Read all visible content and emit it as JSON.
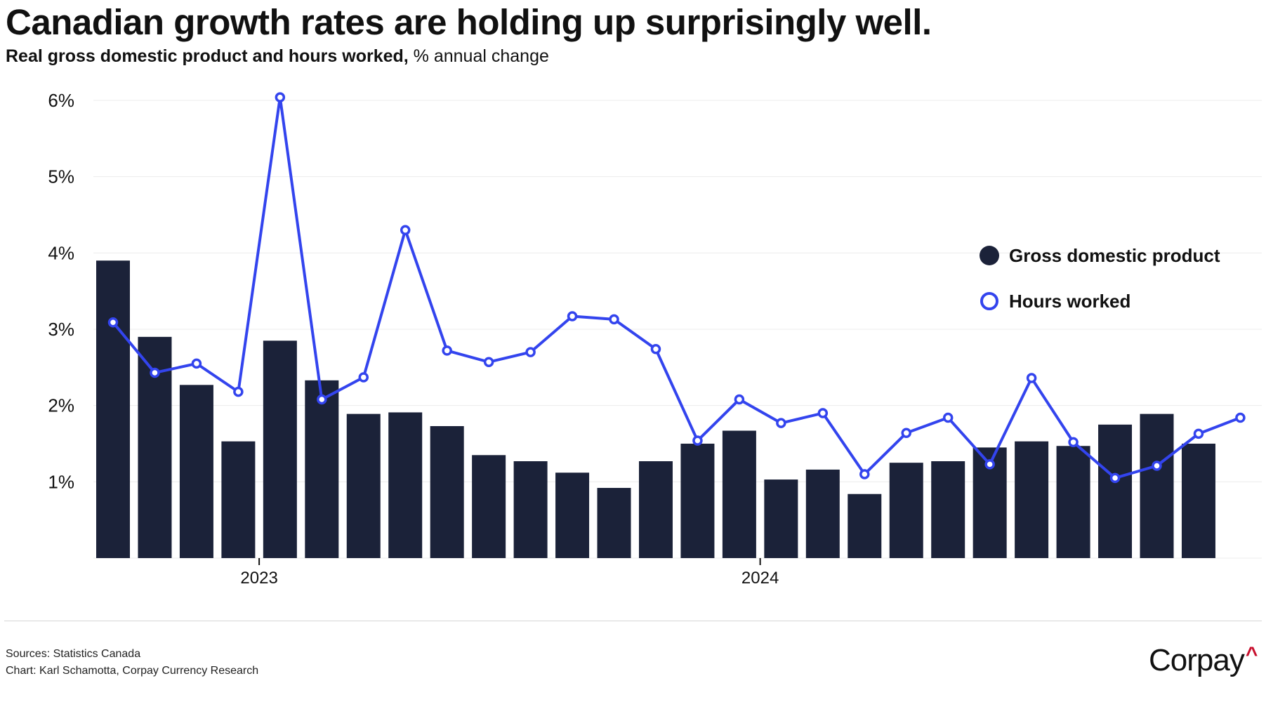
{
  "title": "Canadian growth rates are holding up surprisingly well.",
  "subtitle_bold": "Real gross domestic product and hours worked,",
  "subtitle_rest": " % annual change",
  "sources": "Sources: Statistics Canada",
  "credit": "Chart: Karl Schamotta, Corpay Currency Research",
  "logo_text": "Corpay",
  "logo_mark": "^",
  "colors": {
    "gdp": "#1b2239",
    "hours": "#3344ee",
    "grid": "#ececec",
    "logo_accent": "#c8102e"
  },
  "chart_data": {
    "type": "bar+line",
    "title": "Canadian growth rates are holding up surprisingly well.",
    "subtitle": "Real gross domestic product and hours worked, % annual change",
    "ylim": [
      0,
      6
    ],
    "yticks": [
      1,
      2,
      3,
      4,
      5,
      6
    ],
    "ytick_labels": [
      "1%",
      "2%",
      "3%",
      "4%",
      "5%",
      "6%"
    ],
    "xtick_labels": [
      {
        "label": "2023",
        "pos": 3.5
      },
      {
        "label": "2024",
        "pos": 15.5
      }
    ],
    "grid": true,
    "legend_position": "right",
    "series": [
      {
        "name": "Gross domestic product",
        "type": "bar",
        "values": [
          3.9,
          2.9,
          2.27,
          1.53,
          2.85,
          2.33,
          1.89,
          1.91,
          1.73,
          1.35,
          1.27,
          1.12,
          0.92,
          1.27,
          1.5,
          1.67,
          1.03,
          1.16,
          0.84,
          1.25,
          1.27,
          1.45,
          1.53,
          1.47,
          1.75,
          1.89,
          1.5
        ]
      },
      {
        "name": "Hours worked",
        "type": "line",
        "values": [
          3.09,
          2.43,
          2.55,
          2.18,
          6.04,
          2.08,
          2.37,
          4.3,
          2.72,
          2.57,
          2.7,
          3.17,
          3.13,
          2.74,
          1.54,
          2.08,
          1.77,
          1.9,
          1.1,
          1.64,
          1.84,
          1.23,
          2.36,
          1.52,
          1.05,
          1.21,
          1.63,
          1.84
        ]
      }
    ]
  }
}
